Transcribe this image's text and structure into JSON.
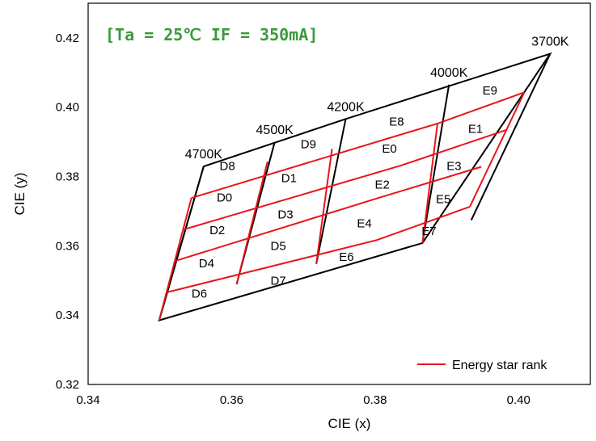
{
  "chart_data": {
    "type": "line",
    "title": "[Ta = 25℃ IF = 350mA]",
    "title_color": "#3a9a3a",
    "xlabel": "CIE (x)",
    "ylabel": "CIE (y)",
    "xlim": [
      0.34,
      0.41
    ],
    "ylim": [
      0.32,
      0.43
    ],
    "x_ticks": [
      "0.34",
      "0.36",
      "0.38",
      "0.40"
    ],
    "x_tick_values": [
      0.34,
      0.36,
      0.38,
      0.4
    ],
    "y_ticks": [
      "0.32",
      "0.34",
      "0.36",
      "0.38",
      "0.40",
      "0.42"
    ],
    "y_tick_values": [
      0.32,
      0.34,
      0.36,
      0.38,
      0.4,
      0.42
    ],
    "grid": false,
    "legend": {
      "placement": "bottom-right",
      "entries": [
        {
          "name": "Energy star rank",
          "color": "#e8141c"
        }
      ]
    },
    "colors": {
      "black_bins": "#000000",
      "energy_star": "#e8141c"
    },
    "cct_lines": [
      {
        "label": "4700K",
        "top": [
          0.3561,
          0.3829
        ],
        "bottom": [
          0.3499,
          0.3385
        ]
      },
      {
        "label": "4500K",
        "top": [
          0.366,
          0.3899
        ],
        "bottom": [
          0.3607,
          0.3489
        ]
      },
      {
        "label": "4200K",
        "top": [
          0.3759,
          0.3966
        ],
        "bottom": [
          0.3718,
          0.3548
        ]
      },
      {
        "label": "4000K",
        "top": [
          0.3903,
          0.4065
        ],
        "bottom": [
          0.3866,
          0.3608
        ]
      },
      {
        "label": "3700K",
        "top": [
          0.4044,
          0.4154
        ],
        "bottom": [
          0.3934,
          0.3674
        ]
      }
    ],
    "outline": [
      [
        0.3561,
        0.3829
      ],
      [
        0.3759,
        0.3966
      ],
      [
        0.4044,
        0.4154
      ],
      [
        0.3866,
        0.3608
      ],
      [
        0.3499,
        0.3385
      ]
    ],
    "red_lines": [
      [
        [
          0.3544,
          0.3738
        ],
        [
          0.3887,
          0.3953
        ],
        [
          0.4008,
          0.4043
        ]
      ],
      [
        [
          0.3533,
          0.3647
        ],
        [
          0.3835,
          0.3831
        ],
        [
          0.3984,
          0.3935
        ]
      ],
      [
        [
          0.3521,
          0.3556
        ],
        [
          0.3806,
          0.3739
        ],
        [
          0.3948,
          0.3828
        ]
      ],
      [
        [
          0.351,
          0.3466
        ],
        [
          0.3803,
          0.3617
        ],
        [
          0.3932,
          0.3713
        ]
      ],
      [
        [
          0.3544,
          0.3738
        ],
        [
          0.3499,
          0.3385
        ]
      ],
      [
        [
          0.365,
          0.3843
        ],
        [
          0.3607,
          0.3489
        ]
      ],
      [
        [
          0.374,
          0.388
        ],
        [
          0.3718,
          0.3548
        ]
      ],
      [
        [
          0.3887,
          0.3953
        ],
        [
          0.3866,
          0.3608
        ]
      ],
      [
        [
          0.4008,
          0.4043
        ],
        [
          0.3932,
          0.3713
        ]
      ]
    ],
    "bins": [
      {
        "label": "D8",
        "x": 0.3594,
        "y": 0.383
      },
      {
        "label": "D9",
        "x": 0.3707,
        "y": 0.3893
      },
      {
        "label": "E8",
        "x": 0.383,
        "y": 0.3958
      },
      {
        "label": "E9",
        "x": 0.396,
        "y": 0.4048
      },
      {
        "label": "D0",
        "x": 0.359,
        "y": 0.374
      },
      {
        "label": "D1",
        "x": 0.368,
        "y": 0.3795
      },
      {
        "label": "E0",
        "x": 0.382,
        "y": 0.388
      },
      {
        "label": "E1",
        "x": 0.394,
        "y": 0.3938
      },
      {
        "label": "D2",
        "x": 0.358,
        "y": 0.3645
      },
      {
        "label": "D3",
        "x": 0.3675,
        "y": 0.369
      },
      {
        "label": "E2",
        "x": 0.381,
        "y": 0.3777
      },
      {
        "label": "E3",
        "x": 0.391,
        "y": 0.383
      },
      {
        "label": "D4",
        "x": 0.3565,
        "y": 0.355
      },
      {
        "label": "D5",
        "x": 0.3665,
        "y": 0.36
      },
      {
        "label": "E4",
        "x": 0.3785,
        "y": 0.3665
      },
      {
        "label": "E5",
        "x": 0.3895,
        "y": 0.3735
      },
      {
        "label": "D6",
        "x": 0.3555,
        "y": 0.3462
      },
      {
        "label": "D7",
        "x": 0.3665,
        "y": 0.35
      },
      {
        "label": "E6",
        "x": 0.376,
        "y": 0.3568
      },
      {
        "label": "E7",
        "x": 0.3875,
        "y": 0.3643
      }
    ]
  }
}
